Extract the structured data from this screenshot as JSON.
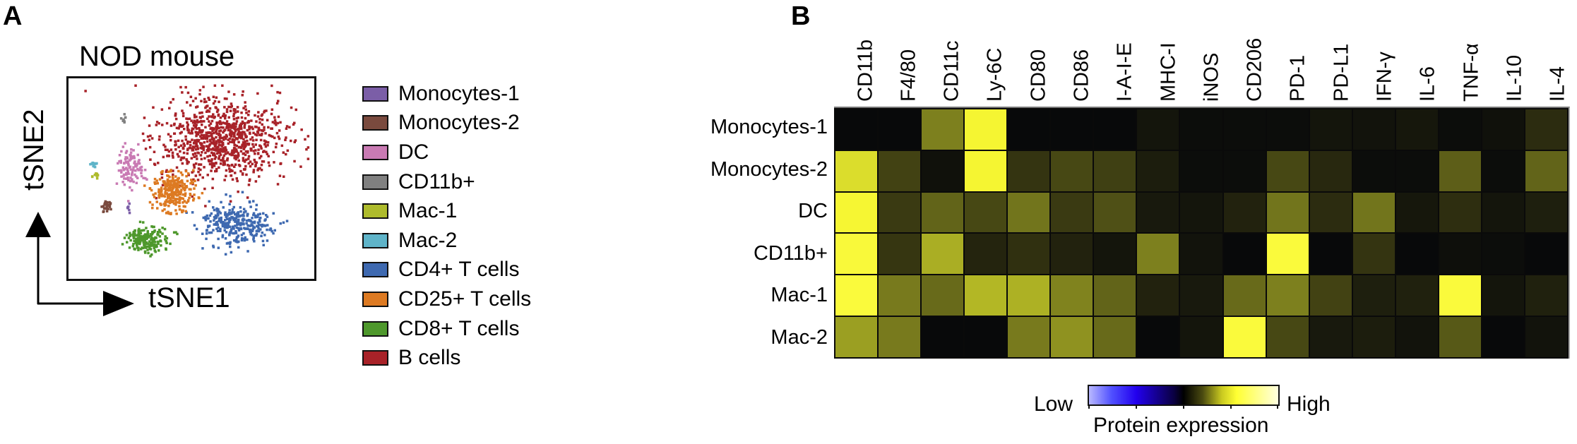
{
  "panels": {
    "a": {
      "letter": "A"
    },
    "b": {
      "letter": "B"
    }
  },
  "chart_data": [
    {
      "type": "scatter",
      "title": "NOD mouse",
      "xlabel": "tSNE1",
      "ylabel": "tSNE2",
      "grid": false,
      "legend_position": "right",
      "legend": [
        {
          "label": "Monocytes-1",
          "color": "#7b5ea7"
        },
        {
          "label": "Monocytes-2",
          "color": "#7a4a3e"
        },
        {
          "label": "DC",
          "color": "#c97ab3"
        },
        {
          "label": "CD11b+",
          "color": "#808080"
        },
        {
          "label": "Mac-1",
          "color": "#aebb2c"
        },
        {
          "label": "Mac-2",
          "color": "#5fb4c9"
        },
        {
          "label": "CD4+ T cells",
          "color": "#3e69b0"
        },
        {
          "label": "CD25+ T cells",
          "color": "#dd7a22"
        },
        {
          "label": "CD8+ T cells",
          "color": "#4e982c"
        },
        {
          "label": "B cells",
          "color": "#a82228"
        }
      ],
      "clusters": [
        {
          "label": "B cells",
          "center": [
            0.62,
            0.3
          ],
          "spread": [
            0.26,
            0.2
          ],
          "n": 900
        },
        {
          "label": "CD4+ T cells",
          "center": [
            0.68,
            0.72
          ],
          "spread": [
            0.14,
            0.1
          ],
          "n": 320
        },
        {
          "label": "CD25+ T cells",
          "center": [
            0.42,
            0.56
          ],
          "spread": [
            0.09,
            0.1
          ],
          "n": 260
        },
        {
          "label": "CD8+ T cells",
          "center": [
            0.32,
            0.8
          ],
          "spread": [
            0.08,
            0.06
          ],
          "n": 200
        },
        {
          "label": "DC",
          "center": [
            0.25,
            0.44
          ],
          "spread": [
            0.05,
            0.1
          ],
          "n": 110
        },
        {
          "label": "Monocytes-2",
          "center": [
            0.15,
            0.63
          ],
          "spread": [
            0.02,
            0.025
          ],
          "n": 30
        },
        {
          "label": "Mac-2",
          "center": [
            0.1,
            0.42
          ],
          "spread": [
            0.015,
            0.012
          ],
          "n": 15
        },
        {
          "label": "Mac-1",
          "center": [
            0.1,
            0.48
          ],
          "spread": [
            0.02,
            0.012
          ],
          "n": 10
        },
        {
          "label": "CD11b+",
          "center": [
            0.22,
            0.2
          ],
          "spread": [
            0.01,
            0.025
          ],
          "n": 8
        },
        {
          "label": "Monocytes-1",
          "center": [
            0.24,
            0.64
          ],
          "spread": [
            0.006,
            0.02
          ],
          "n": 6
        }
      ]
    },
    {
      "type": "heatmap",
      "title": "",
      "xlabel": "",
      "ylabel": "",
      "columns": [
        "CD11b",
        "F4/80",
        "CD11c",
        "Ly-6C",
        "CD80",
        "CD86",
        "I-A-I-E",
        "MHC-I",
        "iNOS",
        "CD206",
        "PD-1",
        "PD-L1",
        "IFN-γ",
        "IL-6",
        "TNF-α",
        "IL-10",
        "IL-4"
      ],
      "rows": [
        "Monocytes-1",
        "Monocytes-2",
        "DC",
        "CD11b+",
        "Mac-1",
        "Mac-2"
      ],
      "values": [
        [
          0.0,
          0.0,
          0.5,
          0.92,
          0.0,
          0.0,
          0.0,
          0.06,
          0.02,
          0.02,
          0.02,
          0.06,
          0.05,
          0.07,
          0.02,
          0.04,
          0.18
        ],
        [
          0.82,
          0.28,
          0.04,
          0.92,
          0.22,
          0.3,
          0.27,
          0.1,
          0.02,
          0.02,
          0.3,
          0.16,
          0.02,
          0.02,
          0.38,
          0.02,
          0.4
        ],
        [
          0.93,
          0.25,
          0.4,
          0.3,
          0.46,
          0.25,
          0.33,
          0.08,
          0.06,
          0.13,
          0.46,
          0.18,
          0.46,
          0.07,
          0.19,
          0.06,
          0.11
        ],
        [
          0.98,
          0.23,
          0.65,
          0.14,
          0.2,
          0.13,
          0.06,
          0.5,
          0.05,
          0.0,
          1.0,
          0.0,
          0.22,
          0.0,
          0.03,
          0.02,
          0.0
        ],
        [
          1.0,
          0.48,
          0.42,
          0.68,
          0.66,
          0.51,
          0.4,
          0.13,
          0.08,
          0.42,
          0.5,
          0.28,
          0.11,
          0.12,
          1.0,
          0.06,
          0.12
        ],
        [
          0.6,
          0.48,
          0.0,
          0.0,
          0.48,
          0.56,
          0.42,
          0.0,
          0.06,
          1.0,
          0.3,
          0.08,
          0.1,
          0.05,
          0.36,
          0.0,
          0.05
        ]
      ],
      "colorbar": {
        "low_label": "Low",
        "high_label": "High",
        "title": "Protein expression",
        "colors": [
          "#b8b8ff",
          "#2200ee",
          "#000000",
          "#ffff33",
          "#ffffe0"
        ]
      }
    }
  ]
}
